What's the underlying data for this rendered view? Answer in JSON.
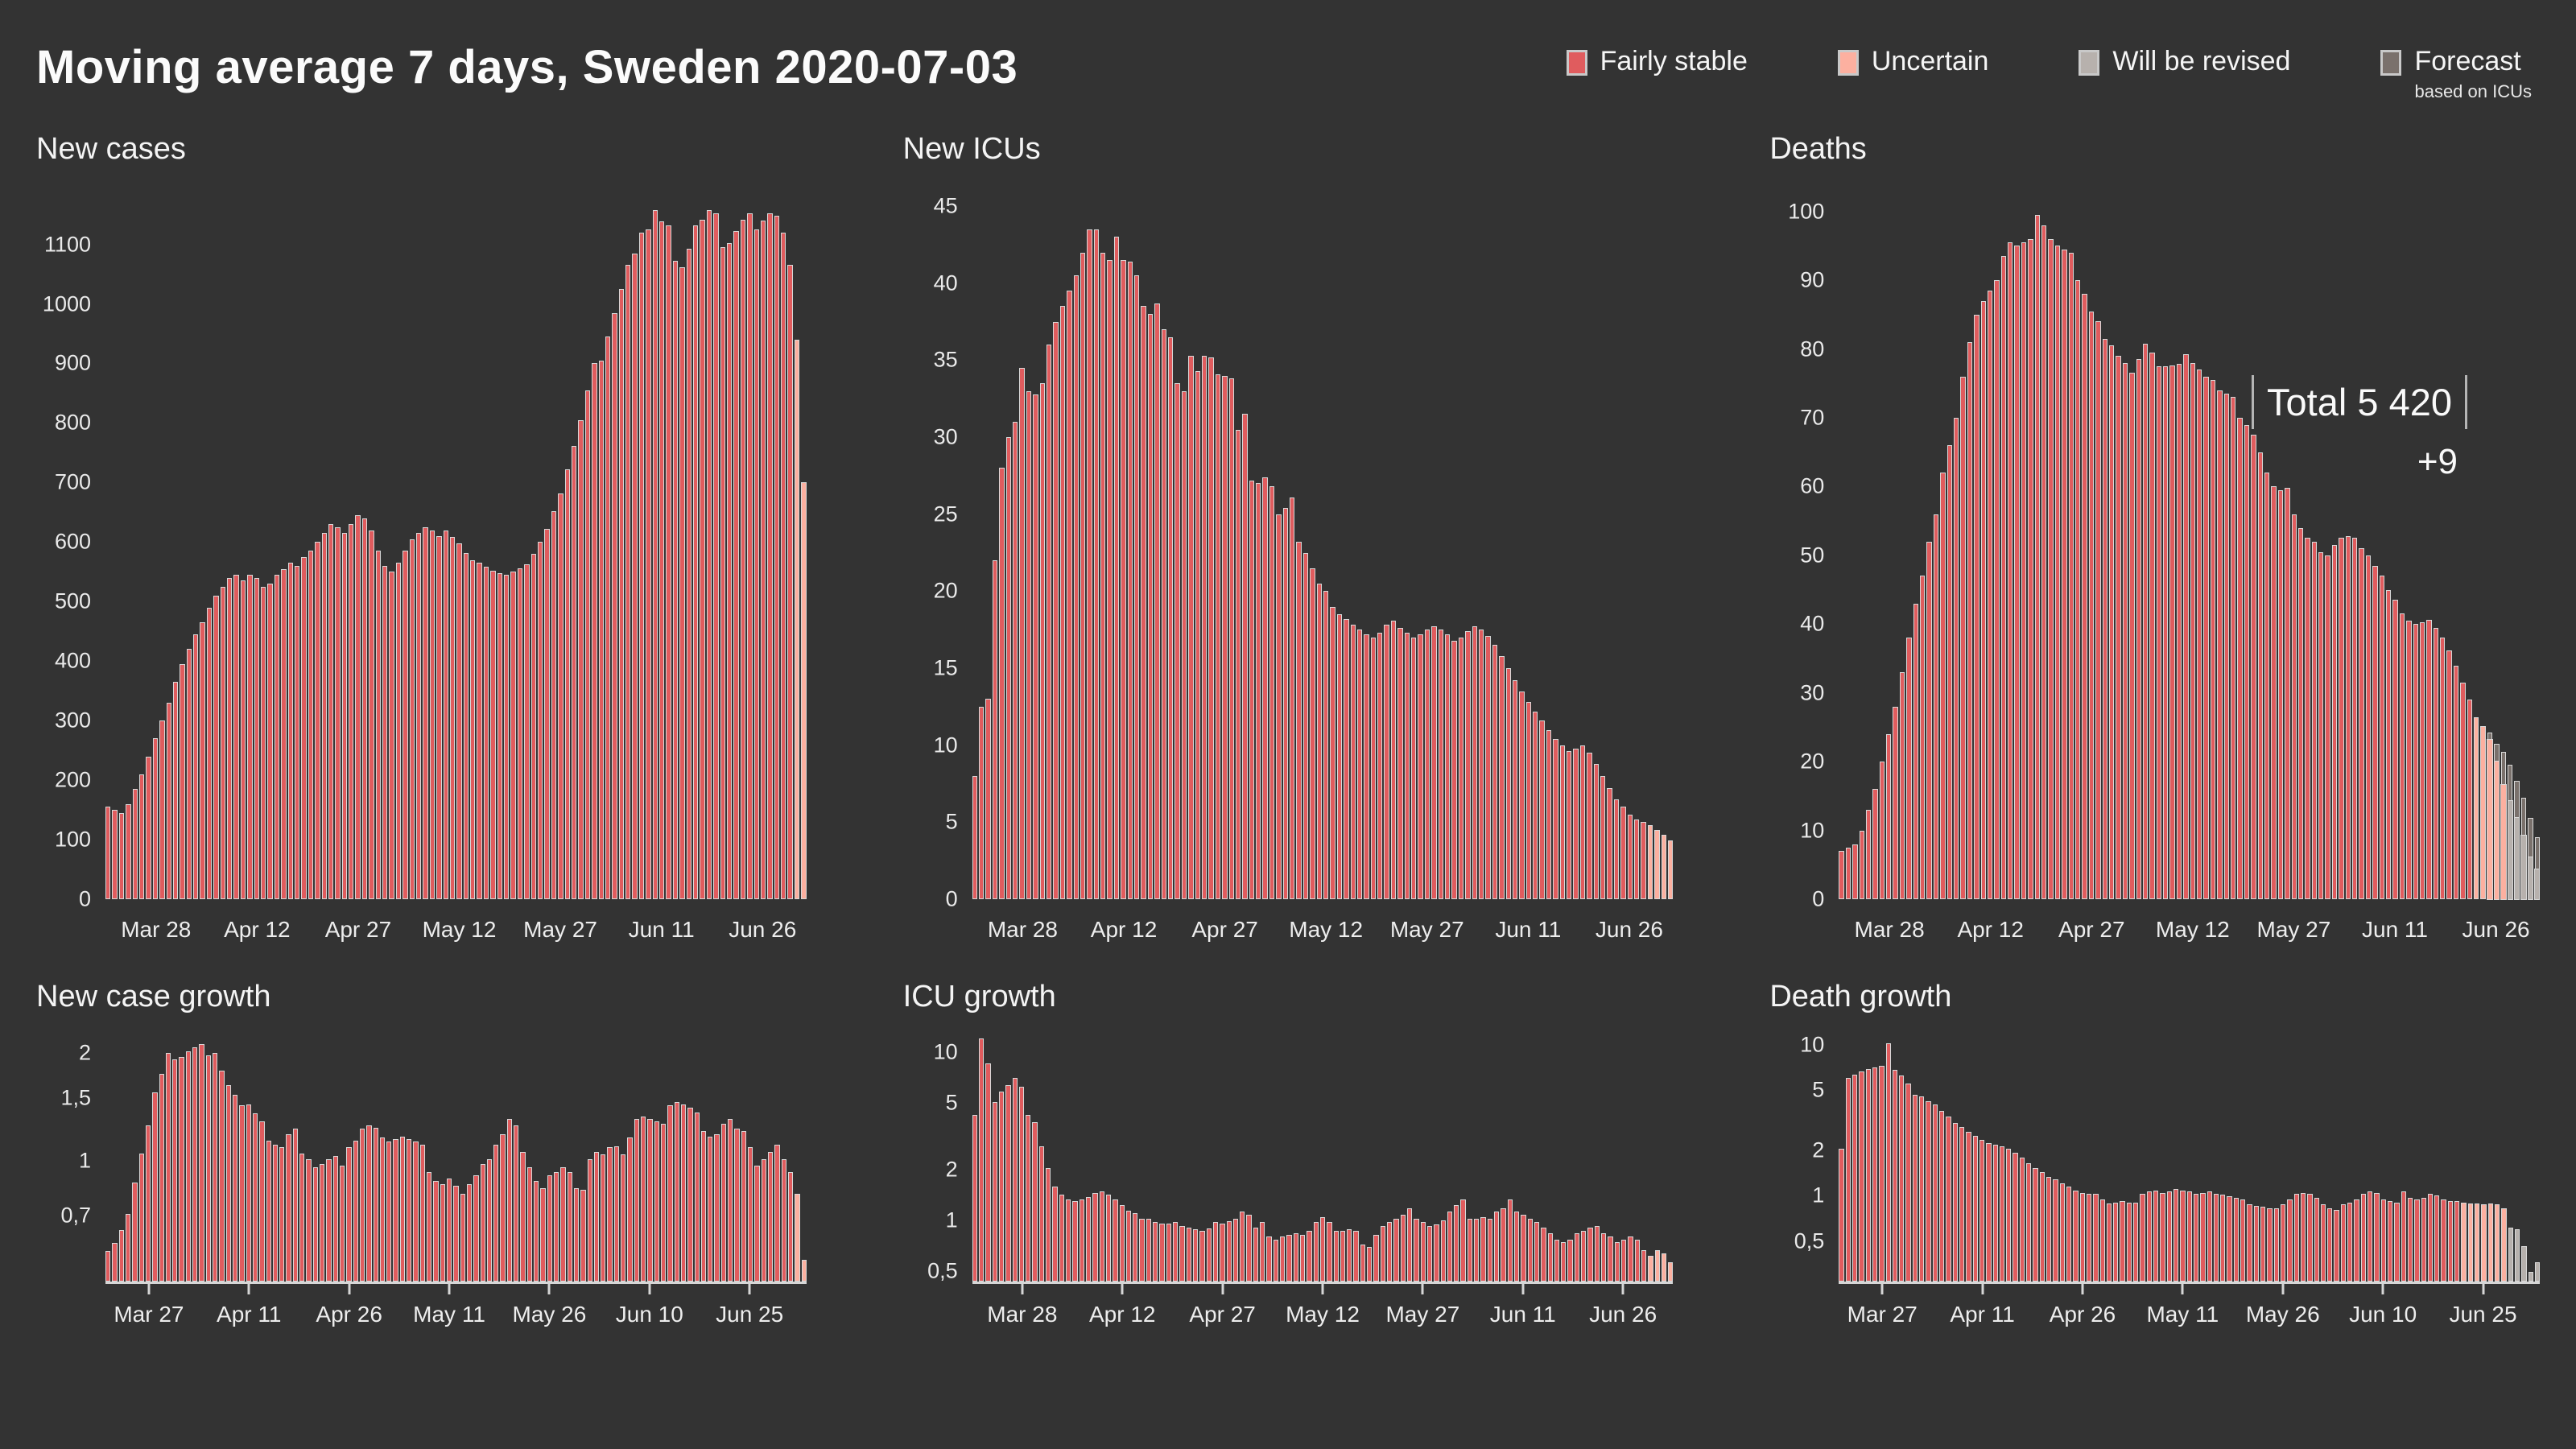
{
  "header": {
    "title": "Moving average 7 days, Sweden 2020-07-03"
  },
  "legend": {
    "items": [
      {
        "label": "Fairly stable",
        "status": "stable",
        "color": "#e05c5e"
      },
      {
        "label": "Uncertain",
        "status": "uncertain",
        "color": "#fcb0a0"
      },
      {
        "label": "Will be revised",
        "status": "revised",
        "color": "#b7b1ad"
      },
      {
        "label": "Forecast",
        "sublabel": "based on ICUs",
        "status": "forecast",
        "color": "#7a716c"
      }
    ]
  },
  "colors": {
    "background": "#333333",
    "bar_stable": "#e05c5e",
    "bar_uncertain": "#fcb0a0",
    "bar_revised": "#b7b1ad",
    "bar_forecast": "#7a716c",
    "bar_border": "#d8d8d8",
    "text": "#f2f2f2"
  },
  "deaths_annotation": {
    "total_label": "Total 5 420",
    "delta_label": "+9"
  },
  "chart_data": [
    {
      "id": "new_cases",
      "title": "New cases",
      "type": "bar",
      "scale": "linear",
      "ymin": 0,
      "ymax": 1190,
      "axis_line": false,
      "yticks": [
        {
          "v": 0,
          "label": "0"
        },
        {
          "v": 100,
          "label": "100"
        },
        {
          "v": 200,
          "label": "200"
        },
        {
          "v": 300,
          "label": "300"
        },
        {
          "v": 400,
          "label": "400"
        },
        {
          "v": 500,
          "label": "500"
        },
        {
          "v": 600,
          "label": "600"
        },
        {
          "v": 700,
          "label": "700"
        },
        {
          "v": 800,
          "label": "800"
        },
        {
          "v": 900,
          "label": "900"
        },
        {
          "v": 1000,
          "label": "1000"
        },
        {
          "v": 1100,
          "label": "1100"
        }
      ],
      "xticks": [
        {
          "i": 7,
          "label": "Mar 28"
        },
        {
          "i": 22,
          "label": "Apr 12"
        },
        {
          "i": 37,
          "label": "Apr 27"
        },
        {
          "i": 52,
          "label": "May 12"
        },
        {
          "i": 67,
          "label": "May 27"
        },
        {
          "i": 82,
          "label": "Jun 11"
        },
        {
          "i": 97,
          "label": "Jun 26"
        }
      ],
      "values": [
        155,
        150,
        145,
        160,
        185,
        210,
        240,
        270,
        300,
        330,
        365,
        395,
        420,
        445,
        465,
        490,
        510,
        525,
        540,
        545,
        535,
        545,
        540,
        525,
        530,
        545,
        555,
        565,
        560,
        575,
        585,
        600,
        615,
        630,
        625,
        615,
        630,
        645,
        640,
        620,
        585,
        560,
        550,
        565,
        585,
        605,
        615,
        625,
        620,
        610,
        620,
        608,
        598,
        582,
        570,
        565,
        558,
        552,
        548,
        545,
        550,
        556,
        562,
        580,
        600,
        622,
        652,
        682,
        722,
        762,
        805,
        855,
        900,
        905,
        945,
        985,
        1025,
        1065,
        1085,
        1120,
        1125,
        1158,
        1138,
        1132,
        1072,
        1062,
        1092,
        1132,
        1142,
        1158,
        1152,
        1095,
        1102,
        1122,
        1142,
        1152,
        1125,
        1140,
        1152,
        1148,
        1120,
        1065,
        940,
        700
      ],
      "status_spans": [
        {
          "from": 102,
          "to": 103,
          "status": "uncertain"
        }
      ]
    },
    {
      "id": "new_icus",
      "title": "New ICUs",
      "type": "bar",
      "scale": "linear",
      "ymin": 0,
      "ymax": 46,
      "axis_line": false,
      "yticks": [
        {
          "v": 0,
          "label": "0"
        },
        {
          "v": 5,
          "label": "5"
        },
        {
          "v": 10,
          "label": "10"
        },
        {
          "v": 15,
          "label": "15"
        },
        {
          "v": 20,
          "label": "20"
        },
        {
          "v": 25,
          "label": "25"
        },
        {
          "v": 30,
          "label": "30"
        },
        {
          "v": 35,
          "label": "35"
        },
        {
          "v": 40,
          "label": "40"
        },
        {
          "v": 45,
          "label": "45"
        }
      ],
      "xticks": [
        {
          "i": 7,
          "label": "Mar 28"
        },
        {
          "i": 22,
          "label": "Apr 12"
        },
        {
          "i": 37,
          "label": "Apr 27"
        },
        {
          "i": 52,
          "label": "May 12"
        },
        {
          "i": 67,
          "label": "May 27"
        },
        {
          "i": 82,
          "label": "Jun 11"
        },
        {
          "i": 97,
          "label": "Jun 26"
        }
      ],
      "values": [
        8,
        12.5,
        13,
        22,
        28,
        30,
        31,
        34.5,
        33,
        32.8,
        33.5,
        36,
        37.5,
        38.5,
        39.5,
        40.5,
        42,
        43.5,
        43.5,
        42,
        41.5,
        43,
        41.5,
        41.4,
        40.5,
        38.5,
        38,
        38.7,
        37,
        36.5,
        33.5,
        33,
        35.3,
        34.3,
        35.3,
        35.2,
        34.1,
        34,
        33.8,
        30.5,
        31.5,
        27.2,
        27,
        27.4,
        26.8,
        25,
        25.4,
        26.1,
        23.2,
        22.5,
        21.5,
        20.5,
        20,
        19,
        18.5,
        18.2,
        17.8,
        17.5,
        17.2,
        17,
        17.3,
        17.8,
        18.1,
        17.6,
        17.3,
        17,
        17.2,
        17.5,
        17.7,
        17.5,
        17.2,
        16.8,
        17,
        17.4,
        17.7,
        17.5,
        17.1,
        16.5,
        15.8,
        15,
        14.2,
        13.5,
        12.8,
        12.2,
        11.6,
        11,
        10.4,
        10,
        9.6,
        9.8,
        10,
        9.5,
        8.8,
        8,
        7.2,
        6.5,
        6,
        5.5,
        5.2,
        5,
        4.8,
        4.5,
        4.2,
        3.8
      ],
      "status_spans": [
        {
          "from": 100,
          "to": 103,
          "status": "uncertain"
        }
      ]
    },
    {
      "id": "deaths",
      "title": "Deaths",
      "type": "bar",
      "scale": "linear",
      "ymin": 0,
      "ymax": 103,
      "axis_line": false,
      "annotation": {
        "total": 5420,
        "new_today": 9
      },
      "yticks": [
        {
          "v": 0,
          "label": "0"
        },
        {
          "v": 10,
          "label": "10"
        },
        {
          "v": 20,
          "label": "20"
        },
        {
          "v": 30,
          "label": "30"
        },
        {
          "v": 40,
          "label": "40"
        },
        {
          "v": 50,
          "label": "50"
        },
        {
          "v": 60,
          "label": "60"
        },
        {
          "v": 70,
          "label": "70"
        },
        {
          "v": 80,
          "label": "80"
        },
        {
          "v": 90,
          "label": "90"
        },
        {
          "v": 100,
          "label": "100"
        }
      ],
      "xticks": [
        {
          "i": 7,
          "label": "Mar 28"
        },
        {
          "i": 22,
          "label": "Apr 12"
        },
        {
          "i": 37,
          "label": "Apr 27"
        },
        {
          "i": 52,
          "label": "May 12"
        },
        {
          "i": 67,
          "label": "May 27"
        },
        {
          "i": 82,
          "label": "Jun 11"
        },
        {
          "i": 97,
          "label": "Jun 26"
        }
      ],
      "values": [
        7,
        7.5,
        8,
        10,
        13,
        16,
        20,
        24,
        28,
        33,
        38,
        43,
        47,
        52,
        56,
        62,
        66,
        70,
        76,
        81,
        85,
        87,
        88.5,
        90,
        93.5,
        95.5,
        95,
        95.5,
        96,
        99.5,
        98,
        96,
        95,
        94.5,
        94,
        90,
        88,
        85.5,
        84,
        81.5,
        80.5,
        79,
        78,
        76.5,
        78.5,
        80.8,
        79.5,
        77.5,
        77.5,
        77.6,
        77.8,
        79.2,
        78,
        77,
        76,
        75.5,
        74,
        73.5,
        73,
        70,
        69,
        67.5,
        65,
        62,
        60,
        59.5,
        59.8,
        56,
        54,
        52.5,
        52,
        50.5,
        50,
        51.5,
        52.5,
        52.8,
        52.5,
        51,
        50,
        48.5,
        47,
        45,
        43.5,
        41.5,
        40.5,
        40,
        40.3,
        40.6,
        39.5,
        38,
        36.2,
        34,
        31.5,
        29,
        26.5,
        25.2,
        24.2,
        22.6,
        21.4,
        19.6,
        17.2,
        14.8,
        11.8,
        9
      ],
      "status_spans": [
        {
          "from": 94,
          "to": 95,
          "status": "uncertain"
        }
      ],
      "overrides": [
        {
          "i": 96,
          "base": 23.6,
          "base_s": "uncertain"
        },
        {
          "i": 97,
          "base": 20.4,
          "base_s": "uncertain"
        },
        {
          "i": 98,
          "base": 17.0,
          "base_s": "uncertain"
        },
        {
          "i": 99,
          "base": 14.6,
          "base_s": "revised"
        },
        {
          "i": 100,
          "base": 12.2,
          "base_s": "revised"
        },
        {
          "i": 101,
          "base": 9.6,
          "base_s": "revised"
        },
        {
          "i": 102,
          "base": 6.4,
          "base_s": "revised"
        },
        {
          "i": 103,
          "base": 4.6,
          "base_s": "revised"
        }
      ]
    },
    {
      "id": "case_growth",
      "title": "New case growth",
      "type": "bar",
      "scale": "log",
      "ymin": 0.45,
      "ymax": 2.2,
      "axis_line": true,
      "yticks": [
        {
          "v": 0.7,
          "label": "0,7"
        },
        {
          "v": 1,
          "label": "1"
        },
        {
          "v": 1.5,
          "label": "1,5"
        },
        {
          "v": 2,
          "label": "2"
        }
      ],
      "xticks": [
        {
          "i": 6,
          "label": "Mar 27"
        },
        {
          "i": 21,
          "label": "Apr 11"
        },
        {
          "i": 36,
          "label": "Apr 26"
        },
        {
          "i": 51,
          "label": "May 11"
        },
        {
          "i": 66,
          "label": "May 26"
        },
        {
          "i": 81,
          "label": "Jun 10"
        },
        {
          "i": 96,
          "label": "Jun 25"
        }
      ],
      "values": [
        0.55,
        0.58,
        0.63,
        0.7,
        0.86,
        1.04,
        1.25,
        1.55,
        1.75,
        2.0,
        1.92,
        1.95,
        2.02,
        2.08,
        2.12,
        1.97,
        2.0,
        1.78,
        1.62,
        1.52,
        1.42,
        1.43,
        1.35,
        1.28,
        1.13,
        1.1,
        1.08,
        1.18,
        1.22,
        1.04,
        1.0,
        0.95,
        0.97,
        1.0,
        1.02,
        0.96,
        1.08,
        1.13,
        1.22,
        1.25,
        1.23,
        1.15,
        1.12,
        1.14,
        1.16,
        1.14,
        1.12,
        1.1,
        0.92,
        0.87,
        0.85,
        0.88,
        0.84,
        0.8,
        0.85,
        0.9,
        0.97,
        1.0,
        1.1,
        1.18,
        1.3,
        1.25,
        1.05,
        0.95,
        0.87,
        0.83,
        0.9,
        0.92,
        0.95,
        0.92,
        0.83,
        0.82,
        1.0,
        1.05,
        1.03,
        1.08,
        1.09,
        1.03,
        1.15,
        1.3,
        1.32,
        1.3,
        1.28,
        1.26,
        1.42,
        1.45,
        1.43,
        1.4,
        1.36,
        1.2,
        1.16,
        1.18,
        1.26,
        1.3,
        1.22,
        1.2,
        1.08,
        0.96,
        1.0,
        1.05,
        1.1,
        1.0,
        0.92,
        0.8,
        0.52
      ],
      "status_spans": [
        {
          "from": 103,
          "to": 104,
          "status": "uncertain"
        }
      ]
    },
    {
      "id": "icu_growth",
      "title": "ICU growth",
      "type": "bar",
      "scale": "log",
      "ymin": 0.42,
      "ymax": 12,
      "axis_line": true,
      "yticks": [
        {
          "v": 0.5,
          "label": "0,5"
        },
        {
          "v": 1,
          "label": "1"
        },
        {
          "v": 2,
          "label": "2"
        },
        {
          "v": 5,
          "label": "5"
        },
        {
          "v": 10,
          "label": "10"
        }
      ],
      "xticks": [
        {
          "i": 7,
          "label": "Mar 28"
        },
        {
          "i": 22,
          "label": "Apr 12"
        },
        {
          "i": 37,
          "label": "Apr 27"
        },
        {
          "i": 52,
          "label": "May 12"
        },
        {
          "i": 67,
          "label": "May 27"
        },
        {
          "i": 82,
          "label": "Jun 11"
        },
        {
          "i": 97,
          "label": "Jun 26"
        }
      ],
      "values": [
        4.2,
        12,
        8.5,
        5.0,
        5.8,
        6.3,
        7.0,
        6.2,
        4.2,
        3.8,
        2.7,
        2.0,
        1.55,
        1.4,
        1.3,
        1.28,
        1.3,
        1.35,
        1.42,
        1.45,
        1.4,
        1.3,
        1.2,
        1.12,
        1.08,
        1.0,
        1.0,
        0.96,
        0.93,
        0.93,
        0.95,
        0.9,
        0.88,
        0.86,
        0.85,
        0.87,
        0.95,
        0.93,
        0.97,
        1.0,
        1.1,
        1.05,
        0.88,
        0.95,
        0.78,
        0.75,
        0.78,
        0.8,
        0.82,
        0.8,
        0.85,
        0.95,
        1.02,
        0.95,
        0.85,
        0.85,
        0.86,
        0.85,
        0.7,
        0.68,
        0.8,
        0.9,
        0.95,
        1.0,
        1.05,
        1.15,
        1.0,
        0.95,
        0.9,
        0.92,
        0.98,
        1.1,
        1.2,
        1.3,
        1.0,
        1.0,
        1.02,
        1.0,
        1.1,
        1.15,
        1.3,
        1.1,
        1.05,
        1.0,
        0.95,
        0.88,
        0.82,
        0.75,
        0.72,
        0.75,
        0.82,
        0.85,
        0.88,
        0.9,
        0.82,
        0.78,
        0.72,
        0.75,
        0.78,
        0.75,
        0.65,
        0.6,
        0.65,
        0.62,
        0.55
      ],
      "status_spans": [
        {
          "from": 101,
          "to": 104,
          "status": "uncertain"
        }
      ]
    },
    {
      "id": "death_growth",
      "title": "Death growth",
      "type": "bar",
      "scale": "log",
      "ymin": 0.26,
      "ymax": 11,
      "axis_line": true,
      "yticks": [
        {
          "v": 0.5,
          "label": "0,5"
        },
        {
          "v": 1,
          "label": "1"
        },
        {
          "v": 2,
          "label": "2"
        },
        {
          "v": 5,
          "label": "5"
        },
        {
          "v": 10,
          "label": "10"
        }
      ],
      "xticks": [
        {
          "i": 6,
          "label": "Mar 27"
        },
        {
          "i": 21,
          "label": "Apr 11"
        },
        {
          "i": 36,
          "label": "Apr 26"
        },
        {
          "i": 51,
          "label": "May 11"
        },
        {
          "i": 66,
          "label": "May 26"
        },
        {
          "i": 81,
          "label": "Jun 10"
        },
        {
          "i": 96,
          "label": "Jun 25"
        }
      ],
      "values": [
        2.0,
        6.0,
        6.3,
        6.6,
        6.9,
        7.0,
        7.2,
        10.2,
        6.8,
        6.2,
        5.5,
        4.6,
        4.5,
        4.2,
        4.0,
        3.6,
        3.3,
        3.0,
        2.8,
        2.6,
        2.45,
        2.3,
        2.2,
        2.15,
        2.1,
        2.0,
        1.9,
        1.75,
        1.6,
        1.5,
        1.4,
        1.3,
        1.25,
        1.18,
        1.12,
        1.05,
        1.02,
        1.0,
        1.0,
        0.92,
        0.87,
        0.88,
        0.9,
        0.88,
        0.88,
        1.0,
        1.04,
        1.06,
        1.02,
        1.04,
        1.08,
        1.06,
        1.04,
        1.0,
        1.02,
        1.04,
        1.0,
        0.99,
        0.97,
        0.95,
        0.92,
        0.85,
        0.83,
        0.82,
        0.8,
        0.8,
        0.85,
        0.92,
        1.0,
        1.02,
        1.0,
        0.95,
        0.85,
        0.8,
        0.78,
        0.85,
        0.88,
        0.92,
        1.0,
        1.04,
        1.02,
        0.92,
        0.9,
        0.88,
        1.04,
        0.95,
        0.92,
        0.95,
        1.0,
        0.98,
        0.92,
        0.9,
        0.9,
        0.88,
        0.87,
        0.87,
        0.86,
        0.87,
        0.85,
        0.8,
        0.6,
        0.58,
        0.45,
        0.3,
        0.35
      ],
      "status_spans": [
        {
          "from": 93,
          "to": 99,
          "status": "uncertain"
        },
        {
          "from": 100,
          "to": 104,
          "status": "revised"
        }
      ]
    }
  ]
}
